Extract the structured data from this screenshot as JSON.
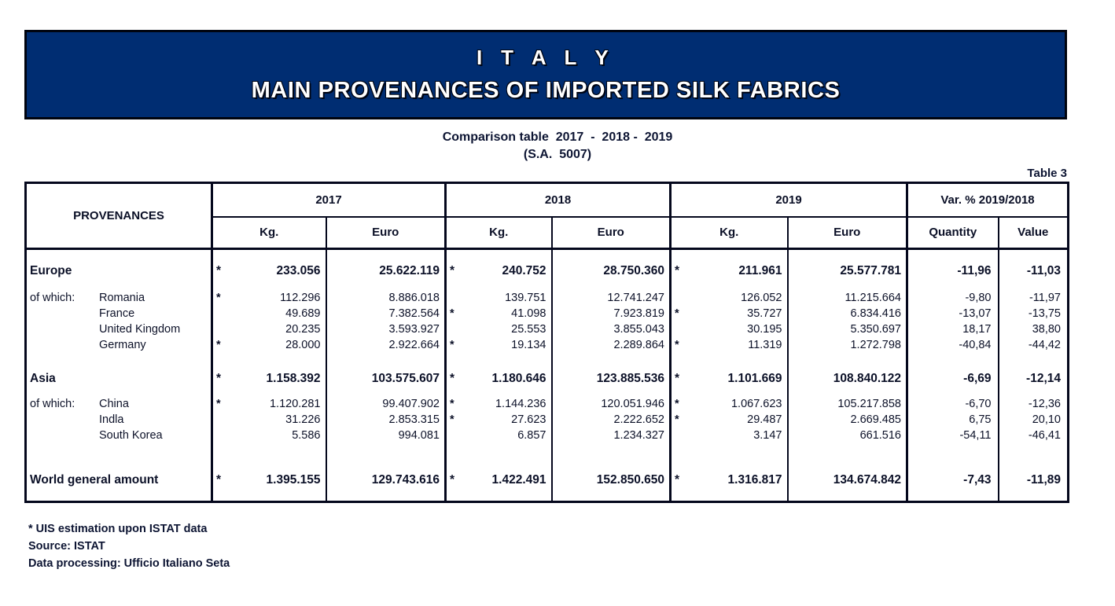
{
  "colors": {
    "banner_bg": "#002d72",
    "banner_text": "#ffffff",
    "ink": "#0c1128"
  },
  "banner": {
    "title": "I T A L Y",
    "subtitle": "MAIN PROVENANCES OF IMPORTED SILK FABRICS"
  },
  "headings": {
    "comparison": "Comparison table  2017  -  2018 -  2019",
    "sa_code": "(S.A.  5007)",
    "table_label": "Table 3"
  },
  "table": {
    "provenances_header": "PROVENANCES",
    "year_groups": [
      {
        "label": "2017",
        "sub": [
          "Kg.",
          "Euro"
        ]
      },
      {
        "label": "2018",
        "sub": [
          "Kg.",
          "Euro"
        ]
      },
      {
        "label": "2019",
        "sub": [
          "Kg.",
          "Euro"
        ]
      },
      {
        "label": "Var. % 2019/2018",
        "sub": [
          "Quantity",
          "Value"
        ]
      }
    ],
    "rows": [
      {
        "kind": "total",
        "prefix": "",
        "name": "Europe",
        "s17": "*",
        "kg17": "233.056",
        "e17": "25.622.119",
        "s18": "*",
        "kg18": "240.752",
        "e18": "28.750.360",
        "s19": "*",
        "kg19": "211.961",
        "e19": "25.577.781",
        "q": "-11,96",
        "v": "-11,03"
      },
      {
        "kind": "detail",
        "prefix": "of which:",
        "name": "Romania",
        "s17": "*",
        "kg17": "112.296",
        "e17": "8.886.018",
        "s18": "",
        "kg18": "139.751",
        "e18": "12.741.247",
        "s19": "",
        "kg19": "126.052",
        "e19": "11.215.664",
        "q": "-9,80",
        "v": "-11,97"
      },
      {
        "kind": "detail",
        "prefix": "",
        "name": "France",
        "s17": "",
        "kg17": "49.689",
        "e17": "7.382.564",
        "s18": "*",
        "kg18": "41.098",
        "e18": "7.923.819",
        "s19": "*",
        "kg19": "35.727",
        "e19": "6.834.416",
        "q": "-13,07",
        "v": "-13,75"
      },
      {
        "kind": "detail",
        "prefix": "",
        "name": "United Kingdom",
        "s17": "",
        "kg17": "20.235",
        "e17": "3.593.927",
        "s18": "",
        "kg18": "25.553",
        "e18": "3.855.043",
        "s19": "",
        "kg19": "30.195",
        "e19": "5.350.697",
        "q": "18,17",
        "v": "38,80"
      },
      {
        "kind": "detail",
        "prefix": "",
        "name": "Germany",
        "s17": "*",
        "kg17": "28.000",
        "e17": "2.922.664",
        "s18": "*",
        "kg18": "19.134",
        "e18": "2.289.864",
        "s19": "*",
        "kg19": "11.319",
        "e19": "1.272.798",
        "q": "-40,84",
        "v": "-44,42"
      },
      {
        "kind": "total",
        "prefix": "",
        "name": "Asia",
        "s17": "*",
        "kg17": "1.158.392",
        "e17": "103.575.607",
        "s18": "*",
        "kg18": "1.180.646",
        "e18": "123.885.536",
        "s19": "*",
        "kg19": "1.101.669",
        "e19": "108.840.122",
        "q": "-6,69",
        "v": "-12,14"
      },
      {
        "kind": "detail",
        "prefix": "of which:",
        "name": "China",
        "s17": "*",
        "kg17": "1.120.281",
        "e17": "99.407.902",
        "s18": "*",
        "kg18": "1.144.236",
        "e18": "120.051.946",
        "s19": "*",
        "kg19": "1.067.623",
        "e19": "105.217.858",
        "q": "-6,70",
        "v": "-12,36"
      },
      {
        "kind": "detail",
        "prefix": "",
        "name": "Indla",
        "s17": "",
        "kg17": "31.226",
        "e17": "2.853.315",
        "s18": "*",
        "kg18": "27.623",
        "e18": "2.222.652",
        "s19": "*",
        "kg19": "29.487",
        "e19": "2.669.485",
        "q": "6,75",
        "v": "20,10"
      },
      {
        "kind": "detail",
        "prefix": "",
        "name": "South Korea",
        "s17": "",
        "kg17": "5.586",
        "e17": "994.081",
        "s18": "",
        "kg18": "6.857",
        "e18": "1.234.327",
        "s19": "",
        "kg19": "3.147",
        "e19": "661.516",
        "q": "-54,11",
        "v": "-46,41"
      },
      {
        "kind": "total",
        "prefix": "",
        "name": "World general amount",
        "s17": "*",
        "kg17": "1.395.155",
        "e17": "129.743.616",
        "s18": "*",
        "kg18": "1.422.491",
        "e18": "152.850.650",
        "s19": "*",
        "kg19": "1.316.817",
        "e19": "134.674.842",
        "q": "-7,43",
        "v": "-11,89"
      }
    ]
  },
  "footnotes": [
    "* UIS estimation upon ISTAT data",
    "Source: ISTAT",
    "Data processing: Ufficio Italiano Seta"
  ]
}
